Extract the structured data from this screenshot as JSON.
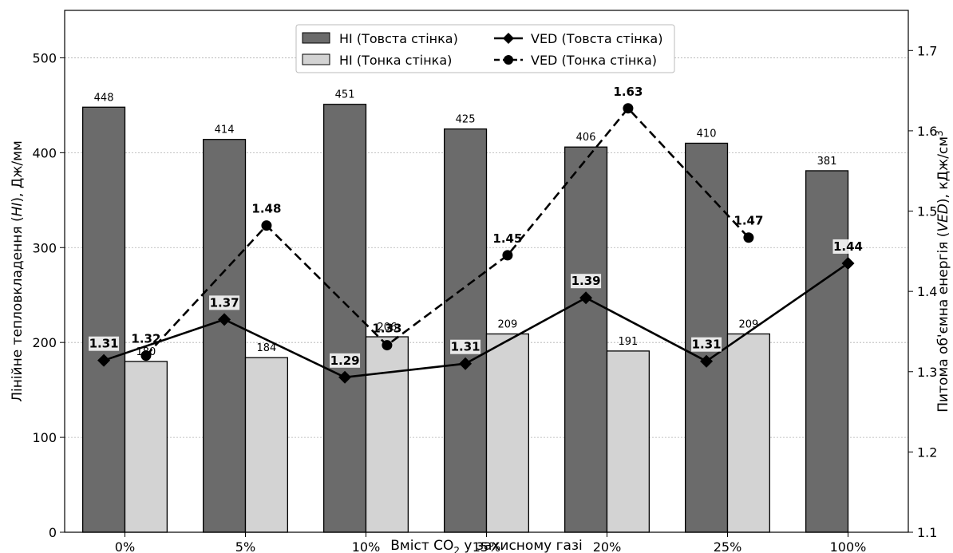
{
  "chart_data": {
    "type": "bar",
    "title": "",
    "categories": [
      "0%",
      "5%",
      "10%",
      "15%",
      "20%",
      "25%",
      "100%"
    ],
    "xlabel_parts": [
      "Вміст CO",
      "2",
      " у захисному газі"
    ],
    "ylabel_left_parts": [
      "Лінійне тепловкладення (",
      "HI",
      "), Дж/мм"
    ],
    "ylabel_right_parts": [
      "Питома об'ємна енергія (",
      "VED",
      "), кДж/см",
      "3"
    ],
    "ylim_left": [
      0,
      550
    ],
    "yticks_left": [
      0,
      100,
      200,
      300,
      400,
      500
    ],
    "ylim_right": [
      1.1,
      1.75
    ],
    "yticks_right": [
      1.1,
      1.2,
      1.3,
      1.4,
      1.5,
      1.6,
      1.7
    ],
    "grid": true,
    "legend_position": "top-center",
    "bar_series": [
      {
        "name": "HI (Товста стінка)",
        "values": [
          448,
          414,
          451,
          425,
          406,
          410,
          381
        ],
        "labels": [
          "448",
          "414",
          "451",
          "425",
          "406",
          "410",
          "381"
        ],
        "color": "#6b6b6b"
      },
      {
        "name": "HI (Тонка стінка)",
        "values": [
          180,
          184,
          206,
          209,
          191,
          209,
          null
        ],
        "labels": [
          "180",
          "184",
          "206",
          "209",
          "191",
          "209",
          ""
        ],
        "color": "#d3d3d3"
      }
    ],
    "line_series": [
      {
        "name": "VED (Товста стінка)",
        "values": [
          1.314,
          1.365,
          1.293,
          1.31,
          1.392,
          1.313,
          1.435
        ],
        "labels": [
          "1.31",
          "1.37",
          "1.29",
          "1.31",
          "1.39",
          "1.31",
          "1.44"
        ],
        "marker": "diamond",
        "dash": "solid",
        "color": "#000000"
      },
      {
        "name": "VED (Тонка стінка)",
        "values": [
          1.32,
          1.482,
          1.333,
          1.445,
          1.628,
          1.467
        ],
        "labels": [
          "1.32",
          "1.48",
          "1.33",
          "1.45",
          "1.63",
          "1.47"
        ],
        "marker": "circle",
        "dash": "dashed",
        "color": "#000000"
      }
    ]
  }
}
